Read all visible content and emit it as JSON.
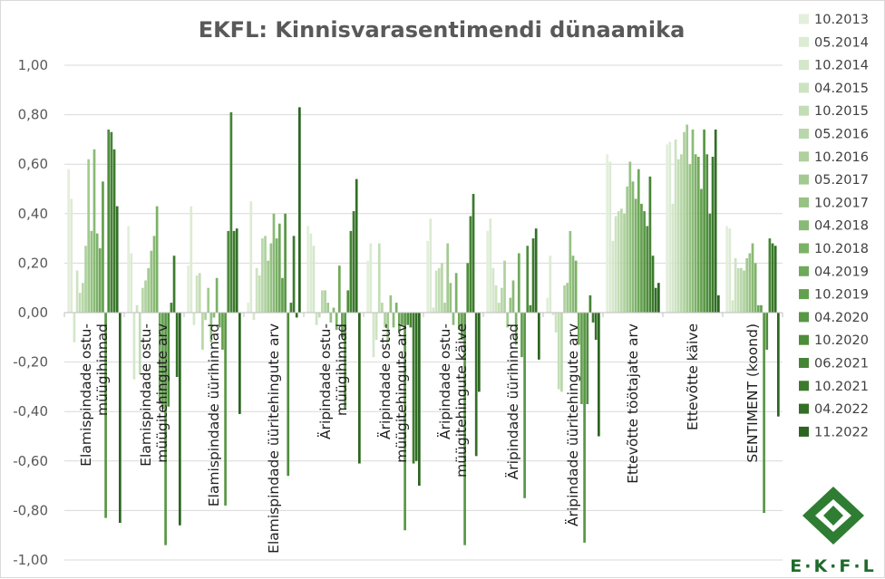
{
  "chart_data": {
    "type": "bar",
    "title": "EKFL: Kinnisvarasentimendi dünaamika",
    "xlabel": "",
    "ylabel": "",
    "ylim": [
      -1.0,
      1.0
    ],
    "yticks": [
      "1,00",
      "0,80",
      "0,60",
      "0,40",
      "0,20",
      "0,00",
      "-0,20",
      "-0,40",
      "-0,60",
      "-0,80",
      "-1,00"
    ],
    "grid": "horizontal",
    "legend_position": "right",
    "categories": [
      "Elamispindade ostu-müügihinnad",
      "Elamispindade ostu-müügitehingute arv",
      "Elamispindade üürihinnad",
      "Elamispindade üüritehingute arv",
      "Äripindade ostu-müügihinnad",
      "Äripindade ostu-müügitehingute arv",
      "Äripindade ostu-müügitehingute käive",
      "Äripindade üürihinnad",
      "Äripindade üüritehingute arv",
      "Ettevõtte töötajate arv",
      "Ettevõtte käive",
      "SENTIMENT (koond)"
    ],
    "series": [
      {
        "name": "10.2013",
        "color": "#e3efdc",
        "values": [
          0.58,
          0.35,
          0.19,
          0.04,
          0.35,
          0.21,
          0.29,
          0.33,
          0.06,
          0.64,
          0.68,
          0.35
        ]
      },
      {
        "name": "05.2014",
        "color": "#dcebd3",
        "values": [
          0.46,
          0.24,
          0.43,
          0.45,
          0.32,
          0.28,
          0.38,
          0.38,
          0.23,
          0.61,
          0.69,
          0.34
        ]
      },
      {
        "name": "10.2014",
        "color": "#d4e7ca",
        "values": [
          -0.12,
          -0.27,
          -0.05,
          -0.03,
          0.27,
          -0.18,
          0.02,
          0.18,
          -0.01,
          0.29,
          0.44,
          0.05
        ]
      },
      {
        "name": "04.2015",
        "color": "#cce3c0",
        "values": [
          0.17,
          0.03,
          0.15,
          0.18,
          -0.05,
          -0.11,
          0.17,
          0.11,
          -0.08,
          0.39,
          0.7,
          0.22
        ]
      },
      {
        "name": "10.2015",
        "color": "#c3ddb6",
        "values": [
          0.08,
          -0.25,
          0.16,
          0.15,
          -0.02,
          0.28,
          0.18,
          0.04,
          -0.31,
          0.41,
          0.62,
          0.18
        ]
      },
      {
        "name": "05.2016",
        "color": "#b9d7aa",
        "values": [
          0.12,
          0.1,
          -0.15,
          0.3,
          0.09,
          0.04,
          0.2,
          0.1,
          -0.32,
          0.42,
          0.64,
          0.18
        ]
      },
      {
        "name": "10.2016",
        "color": "#aed19e",
        "values": [
          0.27,
          0.13,
          -0.03,
          0.31,
          0.09,
          -0.06,
          0.04,
          0.21,
          0.11,
          0.4,
          0.73,
          0.17
        ]
      },
      {
        "name": "05.2017",
        "color": "#a2ca90",
        "values": [
          0.62,
          0.18,
          0.1,
          0.21,
          0.04,
          -0.12,
          0.28,
          -0.06,
          0.12,
          0.51,
          0.76,
          0.22
        ]
      },
      {
        "name": "10.2017",
        "color": "#96c283",
        "values": [
          0.33,
          0.25,
          -0.12,
          0.28,
          -0.04,
          0.07,
          0.12,
          0.06,
          0.33,
          0.61,
          0.6,
          0.24
        ]
      },
      {
        "name": "04.2018",
        "color": "#89ba75",
        "values": [
          0.66,
          0.31,
          -0.02,
          0.4,
          0.02,
          -0.06,
          -0.05,
          0.13,
          0.23,
          0.53,
          0.74,
          0.28
        ]
      },
      {
        "name": "10.2018",
        "color": "#7cb268",
        "values": [
          0.32,
          0.43,
          0.14,
          0.3,
          -0.07,
          0.04,
          0.16,
          -0.13,
          0.21,
          0.46,
          0.64,
          0.2
        ]
      },
      {
        "name": "04.2019",
        "color": "#6fa95a",
        "values": [
          0.26,
          -0.37,
          -0.06,
          0.36,
          0.19,
          -0.08,
          -0.07,
          0.24,
          -0.13,
          0.58,
          0.63,
          0.03
        ]
      },
      {
        "name": "10.2019",
        "color": "#63a04e",
        "values": [
          0.53,
          -0.39,
          -0.15,
          0.14,
          -0.1,
          -0.05,
          -0.11,
          -0.18,
          -0.37,
          0.44,
          0.5,
          0.03
        ]
      },
      {
        "name": "04.2020",
        "color": "#589745",
        "values": [
          -0.83,
          -0.94,
          -0.78,
          0.4,
          -0.39,
          -0.88,
          -0.94,
          -0.75,
          -0.93,
          0.41,
          0.74,
          -0.81
        ]
      },
      {
        "name": "10.2020",
        "color": "#4e8d3c",
        "values": [
          0.74,
          -0.38,
          0.33,
          -0.66,
          0.09,
          -0.05,
          0.2,
          0.27,
          -0.37,
          0.35,
          0.64,
          -0.15
        ]
      },
      {
        "name": "06.2021",
        "color": "#458434",
        "values": [
          0.73,
          0.04,
          0.81,
          0.04,
          0.33,
          -0.06,
          0.39,
          0.03,
          0.07,
          0.55,
          0.4,
          0.3
        ]
      },
      {
        "name": "10.2021",
        "color": "#3c7a2d",
        "values": [
          0.66,
          0.23,
          0.33,
          0.31,
          0.41,
          -0.61,
          0.48,
          0.3,
          -0.04,
          0.23,
          0.63,
          0.28
        ]
      },
      {
        "name": "04.2022",
        "color": "#336f27",
        "values": [
          0.43,
          -0.26,
          0.34,
          -0.02,
          0.54,
          -0.6,
          -0.58,
          0.34,
          -0.11,
          0.1,
          0.74,
          0.27
        ]
      },
      {
        "name": "11.2022",
        "color": "#2b6520",
        "values": [
          -0.85,
          -0.86,
          -0.41,
          0.83,
          -0.61,
          -0.7,
          -0.32,
          -0.19,
          -0.5,
          0.12,
          0.07,
          -0.42
        ]
      }
    ]
  },
  "logo": {
    "label": "E·K·F·L"
  }
}
